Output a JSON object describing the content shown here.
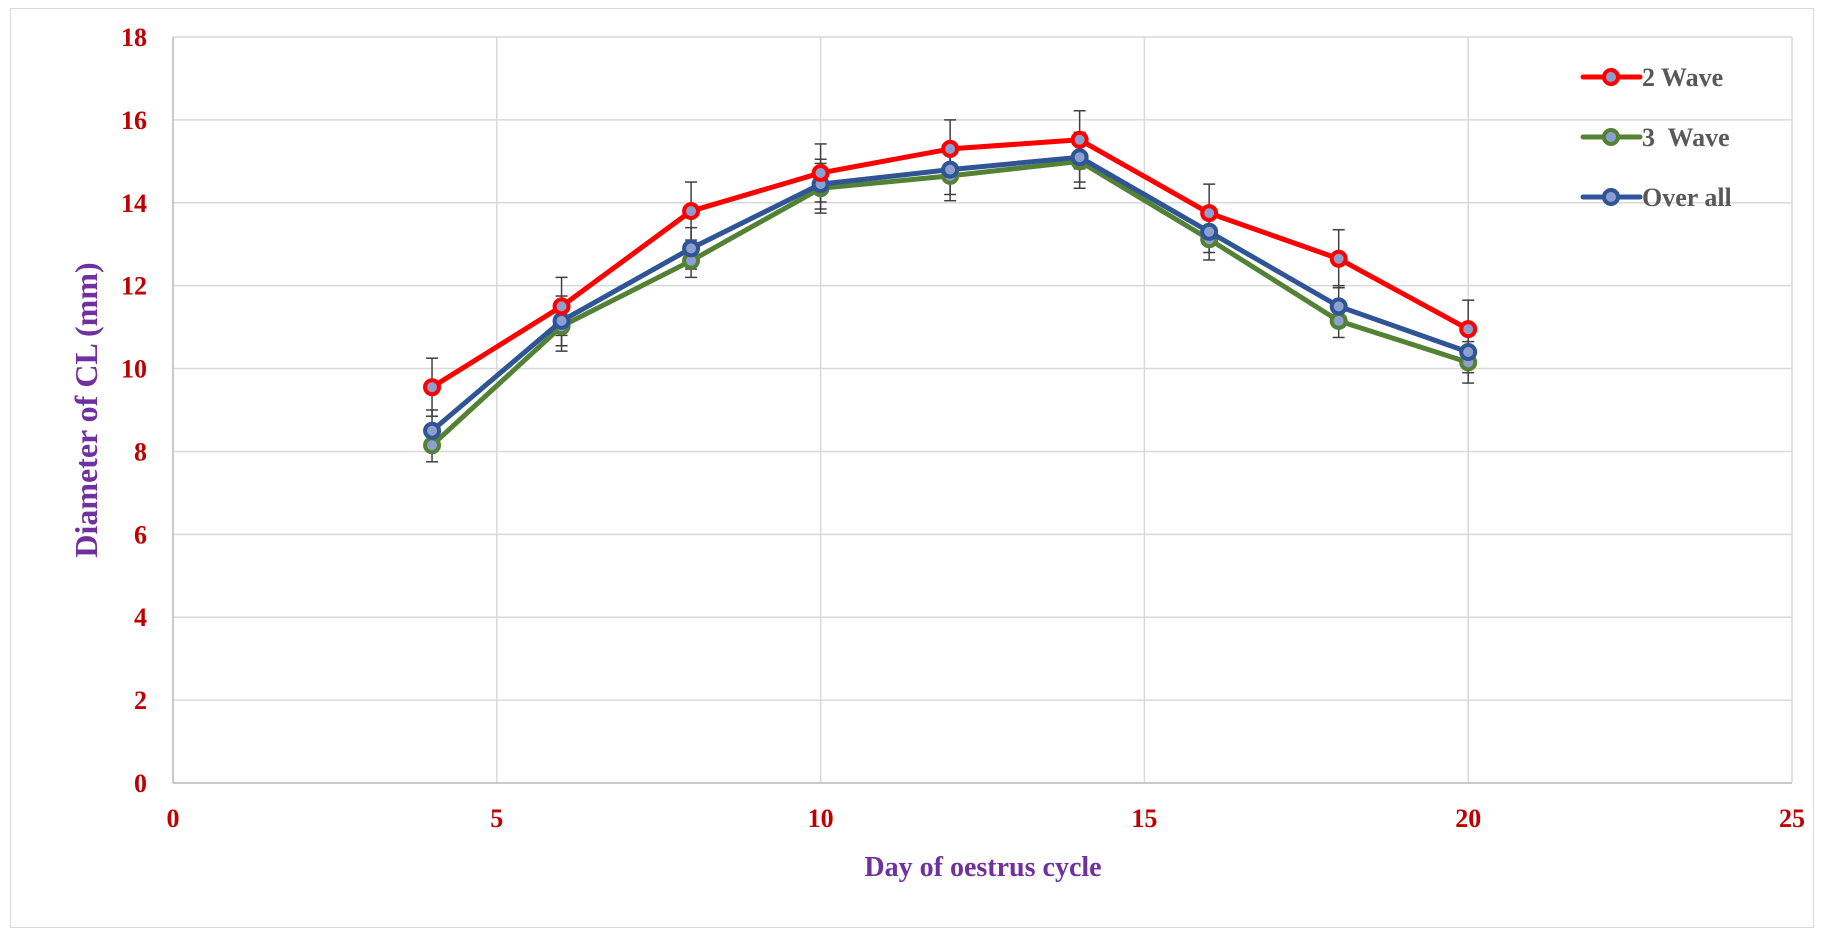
{
  "chart_data": {
    "type": "line",
    "title": "",
    "xlabel": "Day of oestrus cycle",
    "ylabel": "Diameter of CL (mm)",
    "xlim": [
      0,
      25
    ],
    "ylim": [
      0,
      18
    ],
    "xticks": [
      0,
      5,
      10,
      15,
      20,
      25
    ],
    "yticks": [
      0,
      2,
      4,
      6,
      8,
      10,
      12,
      14,
      16,
      18
    ],
    "grid": true,
    "legend_position": "top-right",
    "tick_color": "#c00000",
    "axis_title_color": "#7030a0",
    "x": [
      4,
      6,
      8,
      10,
      12,
      14,
      16,
      18,
      20
    ],
    "series": [
      {
        "name": "2 Wave",
        "color": "#ff0000",
        "values": [
          9.55,
          11.5,
          13.8,
          14.72,
          15.3,
          15.52,
          13.75,
          12.65,
          10.95
        ],
        "errors": [
          0.7,
          0.7,
          0.7,
          0.7,
          0.7,
          0.7,
          0.7,
          0.7,
          0.7
        ]
      },
      {
        "name": "3  Wave",
        "color": "#548235",
        "values": [
          8.15,
          11.02,
          12.6,
          14.35,
          14.65,
          15.0,
          13.12,
          11.15,
          10.15
        ],
        "errors": [
          0.4,
          0.6,
          0.4,
          0.6,
          0.6,
          0.65,
          0.5,
          0.4,
          0.5
        ]
      },
      {
        "name": "Over all",
        "color": "#2f5597",
        "values": [
          8.5,
          11.15,
          12.9,
          14.45,
          14.8,
          15.1,
          13.3,
          11.5,
          10.4
        ],
        "errors": [
          0.5,
          0.6,
          0.5,
          0.6,
          0.6,
          0.6,
          0.5,
          0.5,
          0.5
        ]
      }
    ]
  }
}
